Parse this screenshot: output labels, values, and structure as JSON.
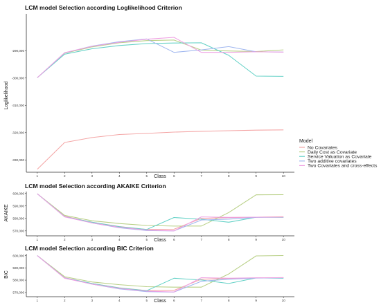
{
  "colors": {
    "No Covariates": "#f4a6a6",
    "Daily Cost as Covariate": "#b7cf84",
    "Service Valuation as Covariate": "#63d1c6",
    "Two additive covariates": "#9fb6ef",
    "Two Covariates and cross-effects": "#ef9fe2"
  },
  "legend": {
    "title": "Model",
    "items": [
      "No Covariates",
      "Daily Cost as Covariate",
      "Service Valuation as Covariate",
      "Two additive covariates",
      "Two Covariates and cross-effects"
    ]
  },
  "chart_data": [
    {
      "type": "line",
      "title": "LCM model Selection according Loglikelihood Criterion",
      "xlabel": "Class",
      "ylabel": "Loglikelihood",
      "x": [
        1,
        2,
        3,
        4,
        5,
        6,
        7,
        8,
        9,
        10
      ],
      "xlim": [
        0.6,
        10.4
      ],
      "ylim": [
        -334500,
        -276500
      ],
      "yticks": [
        -330000,
        -320000,
        -310000,
        -300000,
        -290000
      ],
      "ytick_labels": [
        "-330,000",
        "-320,000",
        "-310,000",
        "-300,000",
        "-290,000"
      ],
      "grid": false,
      "series": [
        {
          "name": "No Covariates",
          "values": [
            -333400,
            -323600,
            -321800,
            -320700,
            -320300,
            -319800,
            -319500,
            -319300,
            -319100,
            -319000
          ]
        },
        {
          "name": "Daily Cost as Covariate",
          "values": [
            -299900,
            -290900,
            -288600,
            -287100,
            -286300,
            -286100,
            -289800,
            -290100,
            -290300,
            -289700
          ]
        },
        {
          "name": "Service Valuation as Covariate",
          "values": [
            -299900,
            -291300,
            -289300,
            -288100,
            -287400,
            -287200,
            -287100,
            -291700,
            -299300,
            -299400
          ]
        },
        {
          "name": "Two additive covariates",
          "values": [
            -299900,
            -290800,
            -288300,
            -286700,
            -285700,
            -290600,
            -289700,
            -288500,
            -290400,
            -290500
          ]
        },
        {
          "name": "Two Covariates and cross-effects",
          "values": [
            -299900,
            -290700,
            -288400,
            -286900,
            -285800,
            -285100,
            -290600,
            -290600,
            -290400,
            -290500
          ]
        }
      ]
    },
    {
      "type": "line",
      "title": "LCM model Selection according AKAIKE Criterion",
      "xlabel": "Class",
      "ylabel": "AKAIKE",
      "x": [
        1,
        2,
        3,
        4,
        5,
        6,
        7,
        8,
        9,
        10
      ],
      "xlim": [
        0.6,
        10.4
      ],
      "ylim": [
        566000,
        601500
      ],
      "yticks": [
        570000,
        580000,
        590000,
        600000
      ],
      "ytick_labels": [
        "570,000",
        "580,000",
        "590,000",
        "600,000"
      ],
      "grid": false,
      "series": [
        {
          "name": "No Covariates",
          "values": [
            599800,
            581700,
            576900,
            573500,
            571100,
            571300,
            580000,
            580600,
            581000,
            581300
          ]
        },
        {
          "name": "Daily Cost as Covariate",
          "values": [
            599800,
            582400,
            578100,
            575900,
            574300,
            573800,
            573900,
            584700,
            598900,
            599000
          ]
        },
        {
          "name": "Service Valuation as Covariate",
          "values": [
            599800,
            581300,
            576900,
            573300,
            571100,
            580700,
            579300,
            576900,
            580900,
            580800
          ]
        },
        {
          "name": "Two additive covariates",
          "values": [
            599800,
            581400,
            576400,
            572500,
            570200,
            570000,
            578700,
            579400,
            580800,
            581000
          ]
        },
        {
          "name": "Two Covariates and cross-effects",
          "values": [
            599800,
            581200,
            576400,
            572800,
            570600,
            570000,
            581200,
            580800,
            581000,
            581000
          ]
        }
      ]
    },
    {
      "type": "line",
      "title": "LCM model Selection according BIC Criterion",
      "xlabel": "Class",
      "ylabel": "BIC",
      "x": [
        1,
        2,
        3,
        4,
        5,
        6,
        7,
        8,
        9,
        10
      ],
      "xlim": [
        0.6,
        10.4
      ],
      "ylim": [
        566500,
        601500
      ],
      "yticks": [
        570000,
        580000,
        590000,
        600000
      ],
      "ytick_labels": [
        "570,000",
        "580,000",
        "590,000",
        "600,000"
      ],
      "grid": false,
      "series": [
        {
          "name": "No Covariates",
          "values": [
            600100,
            582000,
            577300,
            573800,
            571500,
            571700,
            580800,
            581400,
            581800,
            582100
          ]
        },
        {
          "name": "Daily Cost as Covariate",
          "values": [
            600100,
            582800,
            578500,
            576300,
            574700,
            574300,
            574300,
            585100,
            599800,
            600100
          ]
        },
        {
          "name": "Service Valuation as Covariate",
          "values": [
            600100,
            581800,
            577300,
            573600,
            571400,
            581600,
            580100,
            577300,
            581800,
            581600
          ]
        },
        {
          "name": "Two additive covariates",
          "values": [
            600100,
            581800,
            576800,
            572900,
            570600,
            570300,
            579100,
            580800,
            581700,
            581900
          ]
        },
        {
          "name": "Two Covariates and cross-effects",
          "values": [
            600100,
            581600,
            576800,
            573200,
            571000,
            570400,
            582000,
            581600,
            581900,
            582000
          ]
        }
      ]
    }
  ]
}
